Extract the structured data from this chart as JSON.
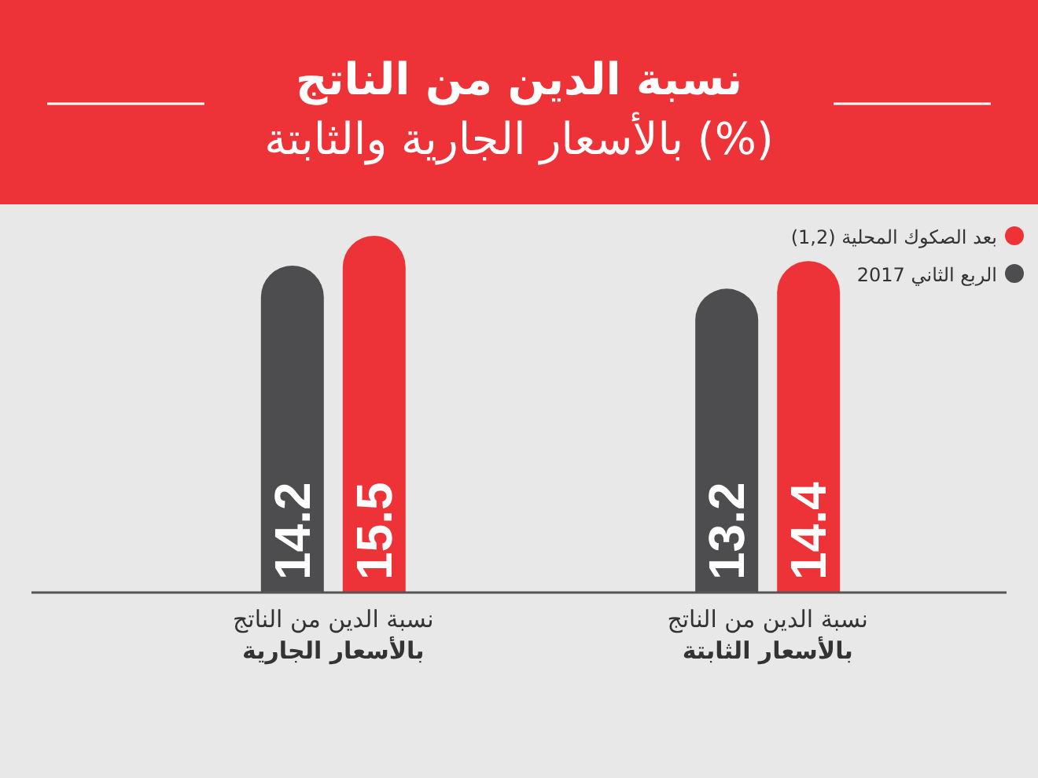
{
  "chart_data": {
    "type": "bar",
    "title": "نسبة الدين من الناتج\nبالأسعار الجارية والثابتة (%)",
    "categories": [
      "نسبة الدين من الناتج\nبالأسعار الجارية",
      "نسبة الدين من الناتج\nبالأسعار الثابتة"
    ],
    "series": [
      {
        "name": "الربع الثاني 2017",
        "color": "#4d4d4f",
        "values": [
          14.2,
          13.2
        ]
      },
      {
        "name": "بعد الصكوك المحلية (1,2)",
        "color": "#ee3338",
        "values": [
          15.5,
          14.4
        ]
      }
    ],
    "data_labels": true,
    "legend": "top right"
  }
}
